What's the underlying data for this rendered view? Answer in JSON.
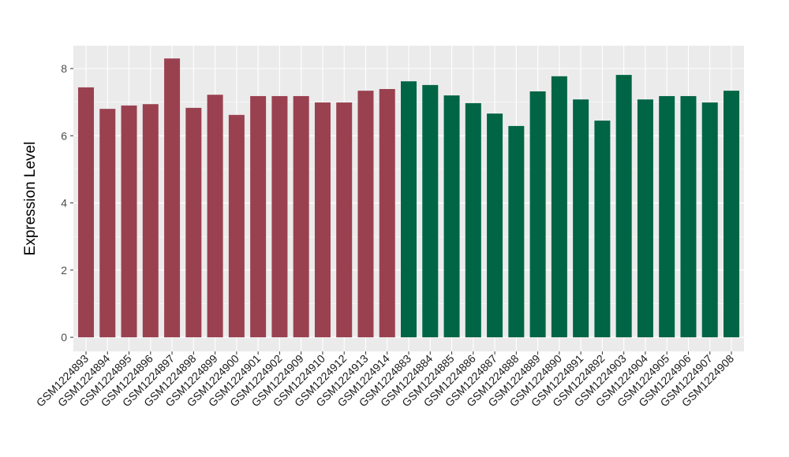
{
  "chart_data": {
    "type": "bar",
    "title": "",
    "xlabel": "",
    "ylabel": "Expression Level",
    "ylim": [
      -0.42,
      8.68
    ],
    "yticks": [
      0,
      2,
      4,
      6,
      8
    ],
    "grid": true,
    "legend": "none",
    "categories": [
      "GSM1224893",
      "GSM1224894",
      "GSM1224895",
      "GSM1224896",
      "GSM1224897",
      "GSM1224898",
      "GSM1224899",
      "GSM1224900",
      "GSM1224901",
      "GSM1224902",
      "GSM1224909",
      "GSM1224910",
      "GSM1224912",
      "GSM1224913",
      "GSM1224914",
      "GSM1224883",
      "GSM1224884",
      "GSM1224885",
      "GSM1224886",
      "GSM1224887",
      "GSM1224888",
      "GSM1224889",
      "GSM1224890",
      "GSM1224891",
      "GSM1224892",
      "GSM1224903",
      "GSM1224904",
      "GSM1224905",
      "GSM1224906",
      "GSM1224907",
      "GSM1224908"
    ],
    "values": [
      7.44,
      6.8,
      6.9,
      6.94,
      8.3,
      6.83,
      7.22,
      6.62,
      7.18,
      7.18,
      7.18,
      6.99,
      6.99,
      7.34,
      7.39,
      7.62,
      7.51,
      7.2,
      6.97,
      6.66,
      6.29,
      7.32,
      7.77,
      7.08,
      6.45,
      7.81,
      7.08,
      7.18,
      7.18,
      6.99,
      7.34
    ],
    "groups": [
      0,
      0,
      0,
      0,
      0,
      0,
      0,
      0,
      0,
      0,
      0,
      0,
      0,
      0,
      0,
      1,
      1,
      1,
      1,
      1,
      1,
      1,
      1,
      1,
      1,
      1,
      1,
      1,
      1,
      1,
      1
    ],
    "colors": [
      "#9a4150",
      "#006545"
    ]
  }
}
